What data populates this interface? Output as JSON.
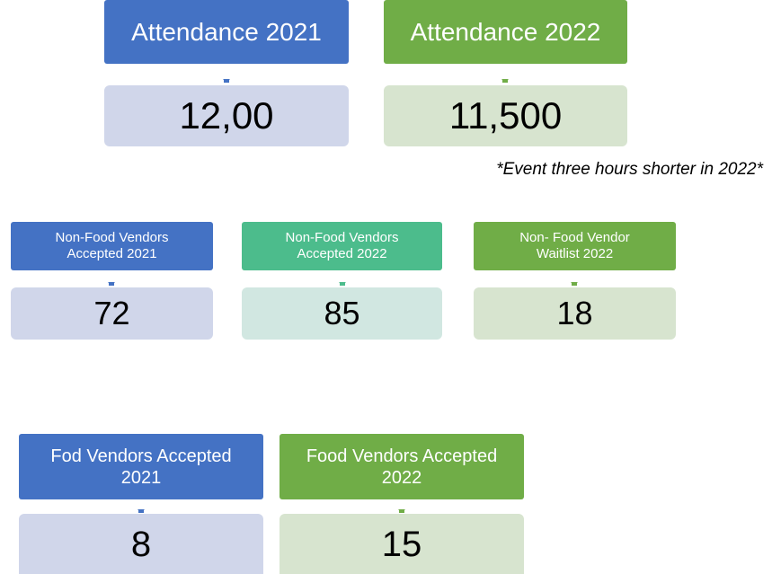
{
  "rows": [
    {
      "cards": [
        {
          "label": "Attendance 2021",
          "value": "12,00"
        },
        {
          "label": "Attendance 2022",
          "value": "11,500"
        }
      ],
      "note": "*Event three hours shorter in 2022*"
    },
    {
      "cards": [
        {
          "label": "Non-Food Vendors Accepted 2021",
          "value": "72"
        },
        {
          "label": "Non-Food Vendors Accepted 2022",
          "value": "85"
        },
        {
          "label": "Non- Food Vendor Waitlist 2022",
          "value": "18"
        }
      ]
    },
    {
      "cards": [
        {
          "label": "Fod Vendors Accepted 2021",
          "value": "8"
        },
        {
          "label": "Food Vendors Accepted 2022",
          "value": "15"
        }
      ]
    }
  ]
}
